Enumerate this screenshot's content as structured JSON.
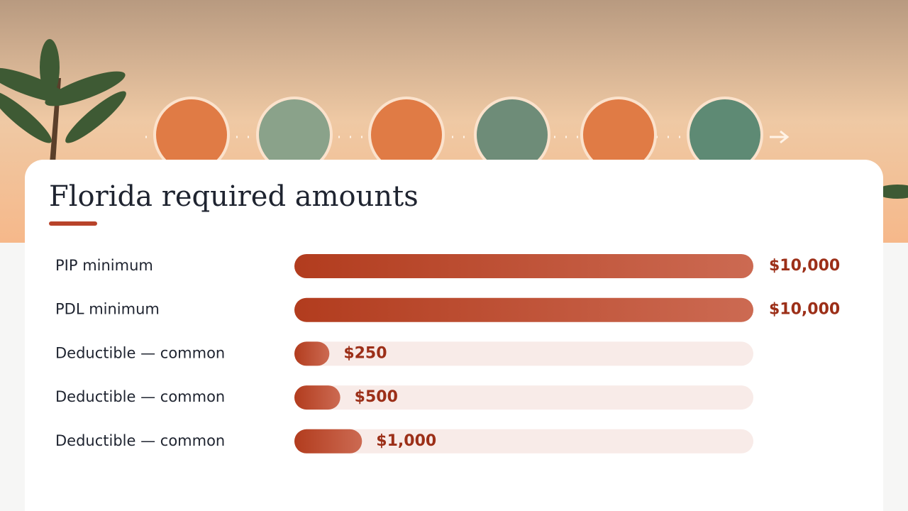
{
  "chart_data": {
    "type": "bar",
    "orientation": "horizontal",
    "title": "Florida required amounts",
    "categories": [
      "PIP minimum",
      "PDL minimum",
      "Deductible — common",
      "Deductible — common",
      "Deductible — common"
    ],
    "values": [
      10000,
      10000,
      250,
      500,
      1000
    ],
    "value_labels": [
      "$10,000",
      "$10,000",
      "$250",
      "$500",
      "$1,000"
    ],
    "xlim": [
      0,
      10000
    ],
    "color": "#b8432a"
  }
}
